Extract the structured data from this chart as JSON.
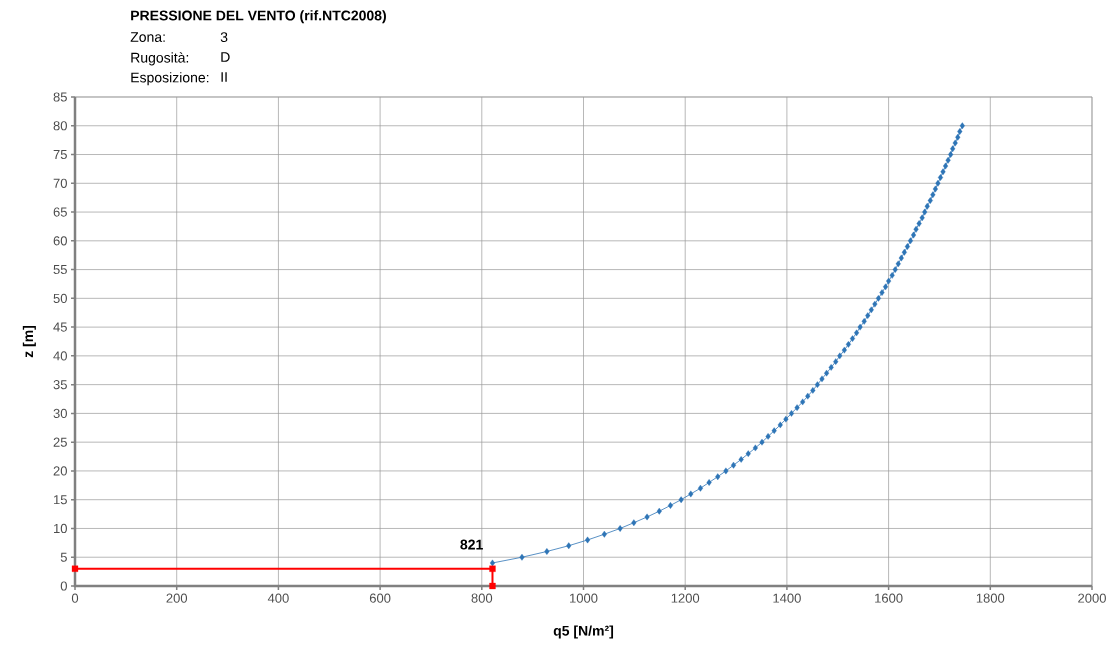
{
  "chart_data": {
    "type": "line",
    "title": "PRESSIONE DEL VENTO (rif.NTC2008)",
    "xlabel": "q5 [N/m²]",
    "ylabel": "z [m]",
    "annotations": [
      "Zona:",
      "3",
      "Rugosità:",
      "D",
      "Esposizione:",
      "II",
      {
        "text": "821",
        "x": 821,
        "y": 3
      }
    ],
    "xlim": [
      0,
      2000
    ],
    "ylim": [
      0,
      85
    ],
    "xticks": [
      0,
      200,
      400,
      600,
      800,
      1000,
      1200,
      1400,
      1600,
      1800,
      2000
    ],
    "yticks": [
      0,
      5,
      10,
      15,
      20,
      25,
      30,
      35,
      40,
      45,
      50,
      55,
      60,
      65,
      70,
      75,
      80,
      85
    ],
    "grid": true,
    "series": [
      {
        "color": "#2e75b6",
        "marker": "diamond",
        "line_style": "solid",
        "x": [
          821,
          879,
          928,
          971,
          1008,
          1041,
          1072,
          1099,
          1125,
          1149,
          1171,
          1192,
          1211,
          1230,
          1247,
          1264,
          1280,
          1295,
          1310,
          1324,
          1338,
          1351,
          1363,
          1375,
          1387,
          1398,
          1409,
          1420,
          1431,
          1441,
          1451,
          1460,
          1469,
          1478,
          1487,
          1496,
          1504,
          1513,
          1521,
          1529,
          1537,
          1544,
          1552,
          1559,
          1566,
          1573,
          1580,
          1587,
          1594,
          1600,
          1607,
          1613,
          1619,
          1625,
          1631,
          1637,
          1643,
          1649,
          1654,
          1660,
          1666,
          1671,
          1676,
          1682,
          1687,
          1692,
          1697,
          1702,
          1707,
          1712,
          1717,
          1722,
          1726,
          1731,
          1736,
          1740,
          1745
        ],
        "values": [
          4,
          5,
          6,
          7,
          8,
          9,
          10,
          11,
          12,
          13,
          14,
          15,
          16,
          17,
          18,
          19,
          20,
          21,
          22,
          23,
          24,
          25,
          26,
          27,
          28,
          29,
          30,
          31,
          32,
          33,
          34,
          35,
          36,
          37,
          38,
          39,
          40,
          41,
          42,
          43,
          44,
          45,
          46,
          47,
          48,
          49,
          50,
          51,
          52,
          53,
          54,
          55,
          56,
          57,
          58,
          59,
          60,
          61,
          62,
          63,
          64,
          65,
          66,
          67,
          68,
          69,
          70,
          71,
          72,
          73,
          74,
          75,
          76,
          77,
          78,
          79,
          80
        ]
      },
      {
        "color": "#ff0000",
        "marker": "square",
        "line_style": "solid",
        "x": [
          0,
          821,
          821
        ],
        "values": [
          3,
          3,
          0
        ]
      }
    ]
  }
}
